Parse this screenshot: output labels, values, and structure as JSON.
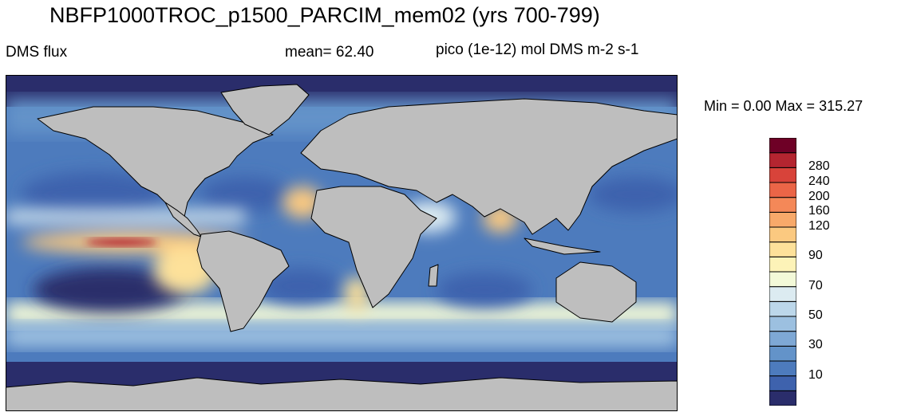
{
  "title": "NBFP1000TROC_p1500_PARCIM_mem02 (yrs 700-799)",
  "left_label": "DMS flux",
  "mean_label": "mean=  62.40",
  "units_label": "pico (1e-12) mol DMS m-2 s-1",
  "min_max": "Min =   0.00 Max = 315.27",
  "colorbar": {
    "colors": [
      "#2a2d6b",
      "#3e62ad",
      "#4d7bbd",
      "#6393c9",
      "#7ea8d5",
      "#9cc0e0",
      "#bcd7ea",
      "#dcebf1",
      "#f3f9d8",
      "#fdf3b8",
      "#fde19a",
      "#fbc980",
      "#f8a96a",
      "#f48858",
      "#eb6547",
      "#d8433a",
      "#b42530",
      "#6e0026"
    ],
    "labels": [
      {
        "value": 10,
        "text": "10"
      },
      {
        "value": 30,
        "text": "30"
      },
      {
        "value": 50,
        "text": "50"
      },
      {
        "value": 70,
        "text": "70"
      },
      {
        "value": 90,
        "text": "90"
      },
      {
        "value": 120,
        "text": "120"
      },
      {
        "value": 160,
        "text": "160"
      },
      {
        "value": 200,
        "text": "200"
      },
      {
        "value": 240,
        "text": "240"
      },
      {
        "value": 280,
        "text": "280"
      }
    ],
    "label_band_index": [
      1,
      3,
      5,
      7,
      9,
      11,
      12,
      13,
      14,
      15
    ]
  },
  "map_colors": {
    "land": "#bebebe",
    "land_outline": "#000000",
    "ocean_low": "#2a2d6b",
    "ocean_mid": "#6393c9",
    "ocean_high": "#fde19a",
    "ocean_peak": "#b42530"
  }
}
